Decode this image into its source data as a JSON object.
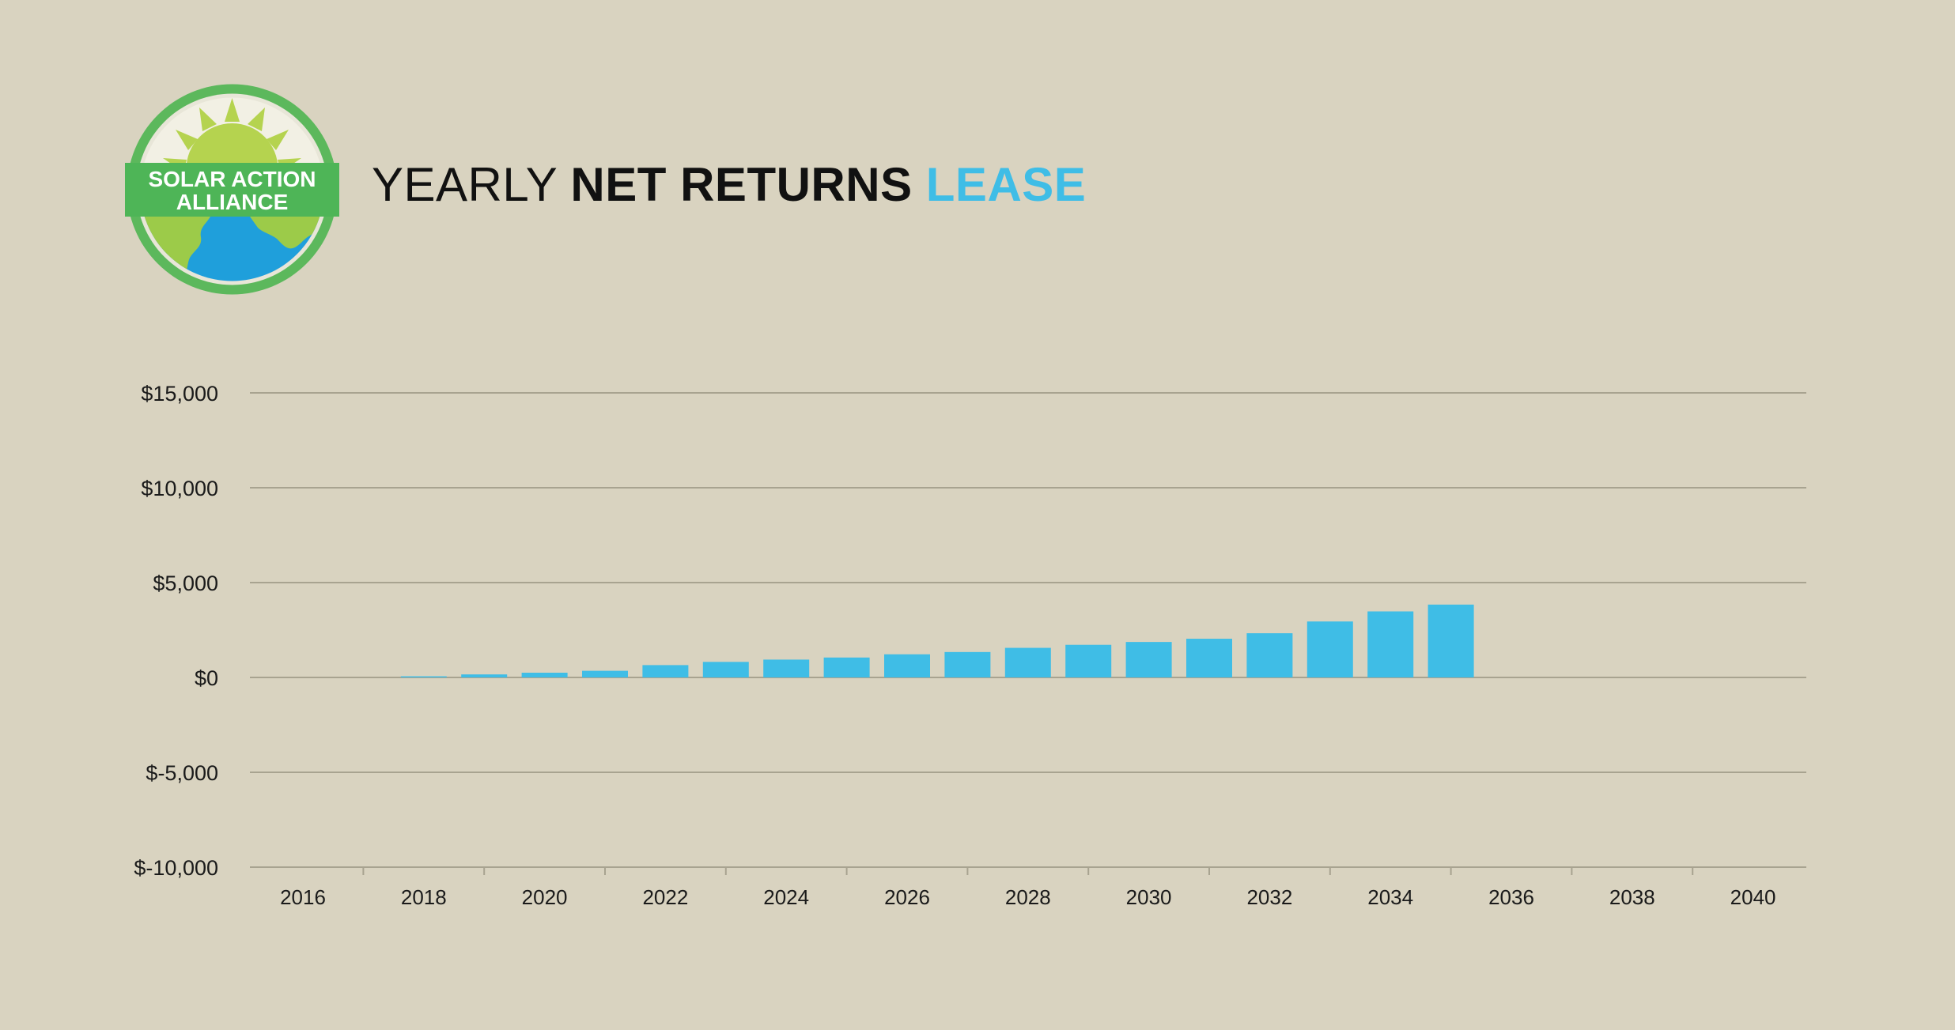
{
  "brand": {
    "logo_line1": "SOLAR ACTION",
    "logo_line2": "ALLIANCE",
    "colors": {
      "ring": "#5cb85c",
      "sun": "#b5d34f",
      "earth_blue": "#1f9fdb",
      "land": "#9ccb49",
      "banner": "#4eb557"
    }
  },
  "title": {
    "part1": "YEARLY ",
    "part2": "NET RETURNS",
    "part3": " LEASE",
    "accent_color": "#3fbde6"
  },
  "chart_data": {
    "type": "bar",
    "x": [
      2018,
      2019,
      2020,
      2021,
      2022,
      2023,
      2024,
      2025,
      2026,
      2027,
      2028,
      2029,
      2030,
      2031,
      2032,
      2033,
      2034,
      2035
    ],
    "values": [
      60,
      160,
      250,
      350,
      650,
      820,
      940,
      1050,
      1220,
      1340,
      1560,
      1720,
      1870,
      2040,
      2330,
      2950,
      3480,
      3840
    ],
    "xlim": [
      2016,
      2040
    ],
    "xticks": [
      "2016",
      "2018",
      "2020",
      "2022",
      "2024",
      "2026",
      "2028",
      "2030",
      "2032",
      "2034",
      "2036",
      "2038",
      "2040"
    ],
    "yticks": [
      15000,
      10000,
      5000,
      0,
      -5000,
      -10000
    ],
    "ytick_labels": [
      "$15,000",
      "$10,000",
      "$5,000",
      "$0",
      "$-5,000",
      "$-10,000"
    ],
    "ylim": [
      -10000,
      15000
    ],
    "grid": true,
    "legend": "none",
    "bar_color": "#3fbde6",
    "grid_color": "#a8a390",
    "tick_label_color": "#1a1a1a"
  }
}
